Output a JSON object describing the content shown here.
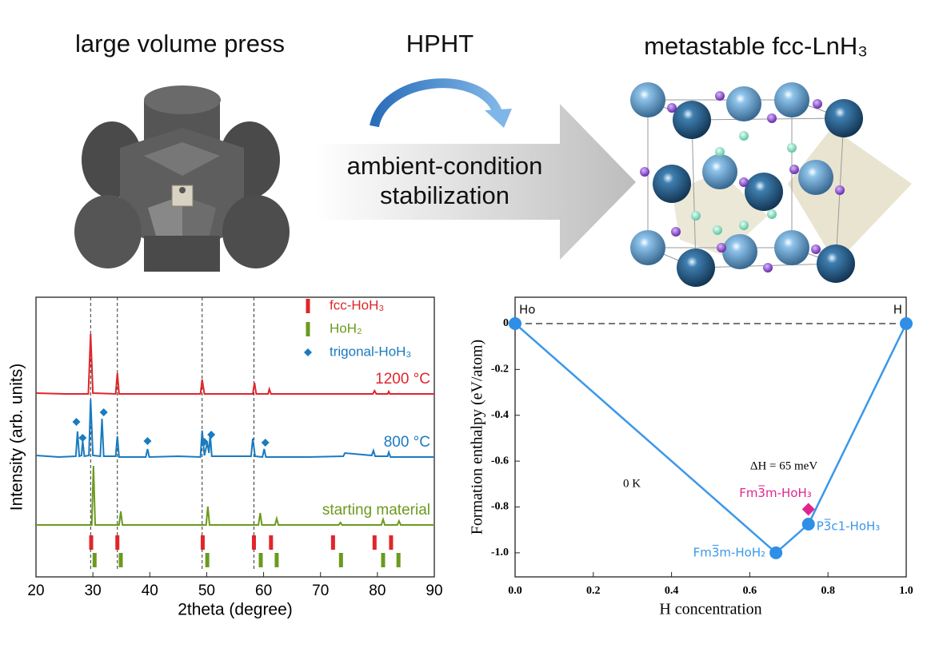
{
  "header": {
    "left": "large volume press",
    "middle": "HPHT",
    "arrow_lines": [
      "ambient-condition",
      "stabilization"
    ],
    "right": "metastable fcc-LnH₃"
  },
  "chart_data": [
    {
      "type": "line",
      "xlabel": "2theta (degree)",
      "ylabel": "Intensity (arb. units)",
      "xlim": [
        20,
        90
      ],
      "xticks": [
        20,
        30,
        40,
        50,
        60,
        70,
        80,
        90
      ],
      "ylim": [
        0,
        350
      ],
      "vlines": [
        29.6,
        34.3,
        49.2,
        58.3
      ],
      "series": [
        {
          "name": "1200 °C",
          "color": "#e0262b",
          "x": [
            20,
            25,
            29.2,
            29.6,
            30.0,
            34.0,
            34.3,
            34.6,
            48.9,
            49.2,
            49.6,
            58.1,
            58.4,
            58.7,
            60.8,
            61.0,
            61.3,
            79.2,
            79.5,
            79.8,
            81.8,
            82.0,
            82.2,
            90
          ],
          "values": [
            230,
            229,
            229,
            304,
            230,
            229,
            255,
            229,
            229,
            247,
            229,
            229,
            243,
            229,
            229,
            235,
            229,
            229,
            233,
            229,
            229,
            232,
            229,
            229
          ]
        },
        {
          "name": "800 °C",
          "color": "#1a7bc0",
          "x": [
            20,
            24,
            27.0,
            27.3,
            27.6,
            28.0,
            28.2,
            28.5,
            29.3,
            29.6,
            30.0,
            31.3,
            31.6,
            31.9,
            34.0,
            34.3,
            34.6,
            39.3,
            39.6,
            39.9,
            45,
            48.9,
            49.2,
            49.6,
            50.1,
            50.4,
            50.6,
            50.9,
            57.8,
            58.1,
            58.5,
            59.8,
            60.1,
            60.4,
            68,
            74,
            74.3,
            79.0,
            79.3,
            79.6,
            81.8,
            82.0,
            82.3,
            90
          ],
          "values": [
            152,
            150,
            151,
            182,
            151,
            152,
            170,
            151,
            152,
            222,
            152,
            151,
            198,
            151,
            151,
            176,
            150,
            150,
            160,
            150,
            151,
            150,
            183,
            152,
            168,
            155,
            178,
            151,
            151,
            173,
            151,
            150,
            160,
            150,
            150,
            151,
            155,
            152,
            158,
            151,
            151,
            156,
            150,
            150
          ]
        },
        {
          "name": "starting material",
          "color": "#6b9a1f",
          "x": [
            20,
            29.8,
            30.1,
            30.4,
            34.6,
            34.9,
            35.2,
            49.9,
            50.2,
            50.5,
            59.1,
            59.4,
            59.7,
            62.0,
            62.3,
            62.6,
            73.2,
            73.5,
            73.8,
            80.7,
            81.0,
            81.3,
            83.5,
            83.8,
            84.1,
            90
          ],
          "values": [
            65,
            65,
            139,
            65,
            65,
            82,
            65,
            65,
            88,
            65,
            65,
            80,
            65,
            65,
            73,
            65,
            65,
            68,
            65,
            65,
            72,
            65,
            65,
            70,
            65,
            65
          ]
        },
        {
          "name": "fcc-HoH₃",
          "color": "#e0262b",
          "marker": "tick",
          "x": [
            29.7,
            34.3,
            49.3,
            58.3,
            61.3,
            72.2,
            79.5,
            82.4
          ]
        },
        {
          "name": "HoH₂",
          "color": "#6b9a1f",
          "marker": "tick",
          "x": [
            30.3,
            34.9,
            50.1,
            59.5,
            62.3,
            73.6,
            81.0,
            83.7
          ]
        },
        {
          "name": "trigonal-HoH₃",
          "color": "#1a7bc0",
          "marker": "diamond",
          "x": [
            27.1,
            28.2,
            31.9,
            39.6,
            49.6,
            50.8,
            60.3
          ],
          "values": [
            194,
            174,
            206,
            170,
            169,
            178,
            168
          ]
        }
      ]
    },
    {
      "type": "line",
      "xlabel": "H concentration",
      "ylabel": "Formation enthalpy (eV/atom)",
      "xlim": [
        0,
        1
      ],
      "xticks": [
        {
          "value": 0,
          "label": "0.0"
        },
        0.2,
        0.4,
        0.6,
        0.8,
        {
          "value": 1,
          "label": "1.0"
        }
      ],
      "ylim": [
        -1.105,
        0.115
      ],
      "yticks": [
        0,
        -0.2,
        -0.4,
        -0.6,
        -0.8,
        {
          "value": -1,
          "label": "-1.0"
        }
      ],
      "hline": 0,
      "annotations": [
        "0 K",
        "ΔH = 65 meV"
      ],
      "series": [
        {
          "color": "#3a97ea",
          "points": true,
          "x": [
            0,
            0.667,
            0.75,
            1
          ],
          "values": [
            0,
            -1.0,
            -0.875,
            0
          ],
          "labels": [
            "Ho",
            "Fm3̅m-HoH₂",
            "P3̅c1-HoH₃",
            "H"
          ]
        },
        {
          "color": "#e0258f",
          "marker": "diamond",
          "x": [
            0.75
          ],
          "values": [
            -0.81
          ],
          "labels": [
            "Fm3̅m-HoH₃"
          ]
        }
      ]
    }
  ]
}
